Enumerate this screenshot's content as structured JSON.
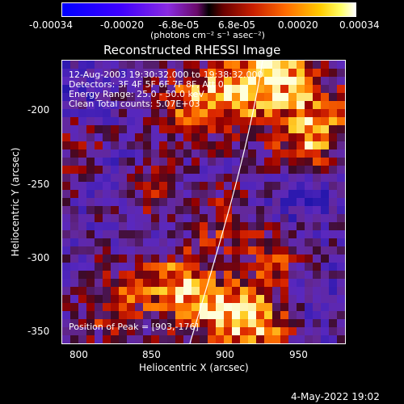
{
  "colorbar": {
    "ticks": [
      "-0.00034",
      "-0.00020",
      "-6.8e-05",
      "6.8e-05",
      "0.00020",
      "0.00034"
    ],
    "units": "(photons cm⁻² s⁻¹ asec⁻²)"
  },
  "plot": {
    "title": "Reconstructed RHESSI Image",
    "xlabel": "Heliocentric X (arcsec)",
    "ylabel": "Heliocentric Y (arcsec)",
    "xticks": [
      "800",
      "850",
      "900",
      "950"
    ],
    "yticks": [
      "-200",
      "-250",
      "-300",
      "-350"
    ],
    "annotations": {
      "time": "12-Aug-2003 19:30:32.000 to 19:38:32.000",
      "detectors": "Detectors: 3F 4F 5F 6F 7F 8F, Att 0",
      "energy": "Energy Range: 25.0 - 50.0 keV",
      "method": "Clean     Total counts: 5.07E+03",
      "peak": "Position of Peak = [903,-176]"
    }
  },
  "footer": {
    "date": "4-May-2022 19:02"
  },
  "colors": {
    "background": "#000000",
    "map_base": "#4a1a82",
    "limb": "#ffffff"
  }
}
